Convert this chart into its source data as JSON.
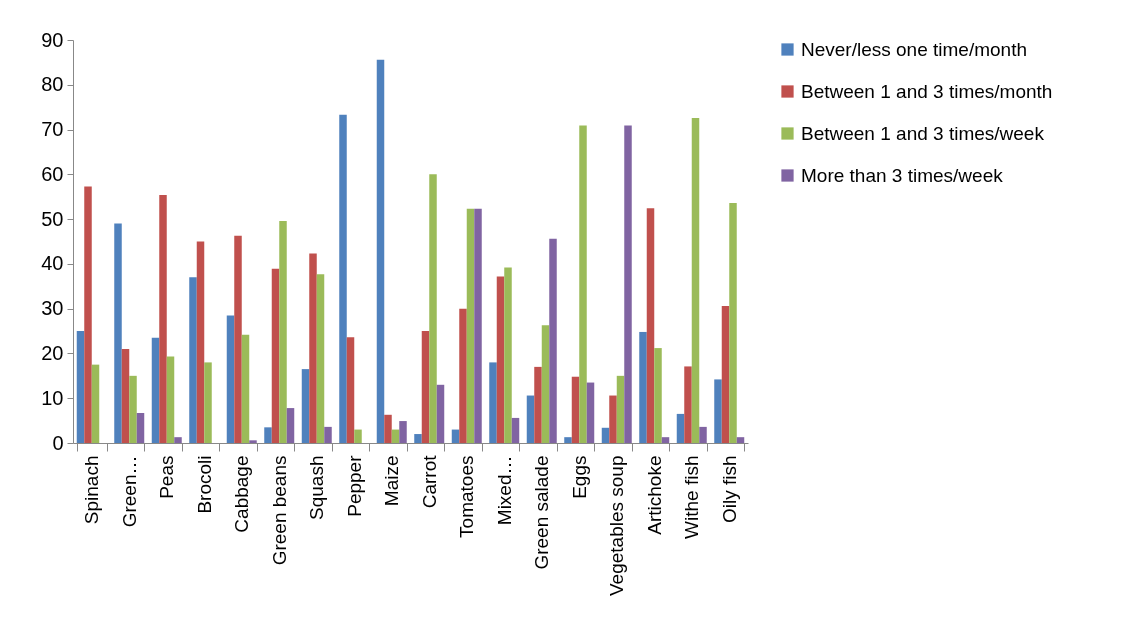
{
  "chart_data": {
    "type": "bar",
    "categories": [
      "Spinach",
      "Green…",
      "Peas",
      "Brocoli",
      "Cabbage",
      "Green beans",
      "Squash",
      "Pepper",
      "Maize",
      "Carrot",
      "Tomatoes",
      "Mixed…",
      "Green salade",
      "Eggs",
      "Vegetables soup",
      "Artichoke",
      "Withe fish",
      "Oily fish"
    ],
    "series": [
      {
        "name": "Never/less one time/month",
        "color": "#4f81bd",
        "values": [
          25,
          49,
          23.5,
          37,
          28.5,
          3.5,
          16.5,
          73.3,
          85.6,
          2,
          3,
          18,
          10.6,
          1.3,
          3.4,
          24.8,
          6.5,
          14.2
        ]
      },
      {
        "name": "Between 1 and 3 times/month",
        "color": "#c0504d",
        "values": [
          57.3,
          21,
          55.4,
          45,
          46.3,
          38.9,
          42.3,
          23.6,
          6.3,
          25,
          30,
          37.2,
          17,
          14.8,
          10.6,
          52.4,
          17.1,
          30.6
        ]
      },
      {
        "name": "Between 1 and 3 times/week",
        "color": "#9bbb59",
        "values": [
          17.5,
          15,
          19.3,
          18,
          24.2,
          49.6,
          37.7,
          3,
          3,
          60,
          52.3,
          39.2,
          26.3,
          70.9,
          15,
          21.2,
          72.6,
          53.6
        ]
      },
      {
        "name": "More than 3 times/week",
        "color": "#8064a2",
        "values": [
          null,
          6.7,
          1.3,
          null,
          0.6,
          7.8,
          3.6,
          null,
          4.9,
          13,
          52.3,
          5.6,
          45.6,
          13.5,
          70.9,
          1.3,
          3.6,
          1.3
        ]
      }
    ],
    "ylim": [
      0,
      90
    ],
    "yticks": [
      0,
      10,
      20,
      30,
      40,
      50,
      60,
      70,
      80,
      90
    ],
    "grid": false,
    "legend": "right"
  }
}
